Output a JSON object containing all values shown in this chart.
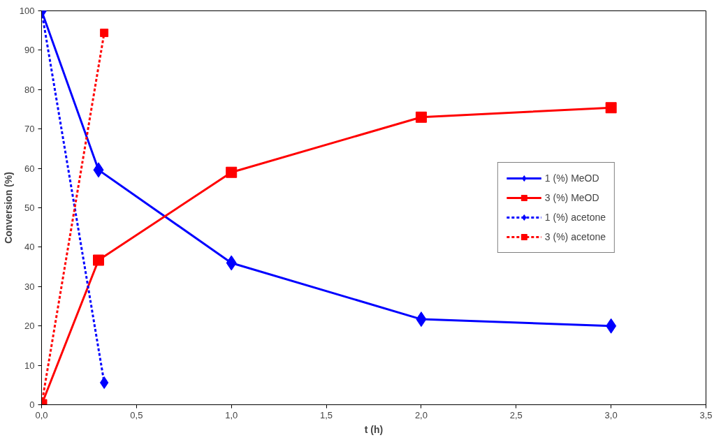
{
  "chart_data": {
    "type": "line",
    "xlabel": "t (h)",
    "ylabel": "Conversion (%)",
    "xlim": [
      0,
      3.5
    ],
    "xticks": [
      {
        "value": 0,
        "label": "0,0"
      },
      {
        "value": 0.5,
        "label": "0,5"
      },
      {
        "value": 1,
        "label": "1,0"
      },
      {
        "value": 1.5,
        "label": "1,5"
      },
      {
        "value": 2,
        "label": "2,0"
      },
      {
        "value": 2.5,
        "label": "2,5"
      },
      {
        "value": 3,
        "label": "3,0"
      },
      {
        "value": 3.5,
        "label": "3,5"
      }
    ],
    "ylim": [
      0,
      100
    ],
    "yticks": [
      0,
      10,
      20,
      30,
      40,
      50,
      60,
      70,
      80,
      90,
      100
    ],
    "grid": false,
    "legend": "right",
    "series": [
      {
        "name": "1 (%) MeOD",
        "color": "#0000ff",
        "marker": "diamond",
        "line_style": "solid",
        "x": [
          0,
          0.3,
          1,
          2,
          3
        ],
        "values": [
          100,
          59.6,
          36,
          21.7,
          20
        ]
      },
      {
        "name": "3 (%) MeOD",
        "color": "#ff0000",
        "marker": "square",
        "line_style": "solid",
        "x": [
          0,
          0.3,
          1,
          2,
          3
        ],
        "values": [
          0,
          36.7,
          59,
          73,
          75.4
        ]
      },
      {
        "name": "1 (%) acetone",
        "color": "#0000ff",
        "marker": "diamond",
        "line_style": "dotted",
        "x": [
          0,
          0.33
        ],
        "values": [
          100,
          5.6
        ]
      },
      {
        "name": "3 (%) acetone",
        "color": "#ff0000",
        "marker": "square",
        "line_style": "dotted",
        "x": [
          0,
          0.33
        ],
        "values": [
          0,
          94.4
        ]
      }
    ]
  }
}
